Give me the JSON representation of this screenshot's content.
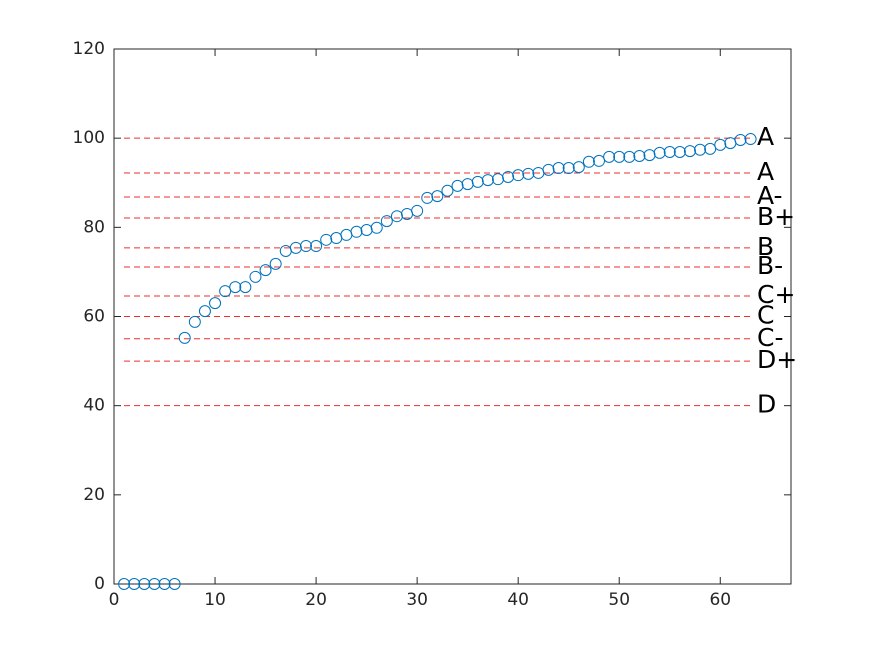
{
  "chart_data": {
    "type": "scatter",
    "x": [
      1,
      2,
      3,
      4,
      5,
      6,
      7,
      8,
      9,
      10,
      11,
      12,
      13,
      14,
      15,
      16,
      17,
      18,
      19,
      20,
      21,
      22,
      23,
      24,
      25,
      26,
      27,
      28,
      29,
      30,
      31,
      32,
      33,
      34,
      35,
      36,
      37,
      38,
      39,
      40,
      41,
      42,
      43,
      44,
      45,
      46,
      47,
      48,
      49,
      50,
      51,
      52,
      53,
      54,
      55,
      56,
      57,
      58,
      59,
      60,
      61,
      62,
      63
    ],
    "values": [
      0,
      0,
      0,
      0,
      0,
      0,
      55.2,
      58.8,
      61.2,
      63.0,
      65.7,
      66.6,
      66.6,
      68.9,
      70.4,
      71.8,
      74.7,
      75.4,
      75.8,
      75.8,
      77.2,
      77.6,
      78.3,
      79.0,
      79.4,
      79.9,
      81.4,
      82.5,
      83.0,
      83.7,
      86.6,
      87.0,
      88.2,
      89.3,
      89.7,
      90.2,
      90.6,
      90.8,
      91.3,
      91.7,
      92.0,
      92.2,
      92.9,
      93.3,
      93.3,
      93.5,
      94.7,
      94.9,
      95.8,
      95.8,
      95.8,
      96.0,
      96.2,
      96.7,
      96.9,
      96.9,
      97.1,
      97.4,
      97.6,
      98.5,
      98.9,
      99.6,
      99.8
    ],
    "color": "#0072bd",
    "xlim": [
      0,
      67
    ],
    "ylim": [
      0,
      120
    ],
    "xticks": [
      0,
      10,
      20,
      30,
      40,
      50,
      60
    ],
    "yticks": [
      0,
      20,
      40,
      60,
      80,
      100,
      120
    ],
    "reference_color": "#e8312f",
    "reference_lines": [
      {
        "value": 100,
        "label": "A"
      },
      {
        "value": 92.2,
        "label": "A"
      },
      {
        "value": 86.8,
        "label": "A-"
      },
      {
        "value": 82.1,
        "label": "B+"
      },
      {
        "value": 75.4,
        "label": "B"
      },
      {
        "value": 71.1,
        "label": "B-"
      },
      {
        "value": 64.6,
        "label": "C+"
      },
      {
        "value": 60,
        "label": "C"
      },
      {
        "value": 55,
        "label": "C-"
      },
      {
        "value": 50,
        "label": "D+"
      },
      {
        "value": 40,
        "label": "D"
      }
    ]
  }
}
